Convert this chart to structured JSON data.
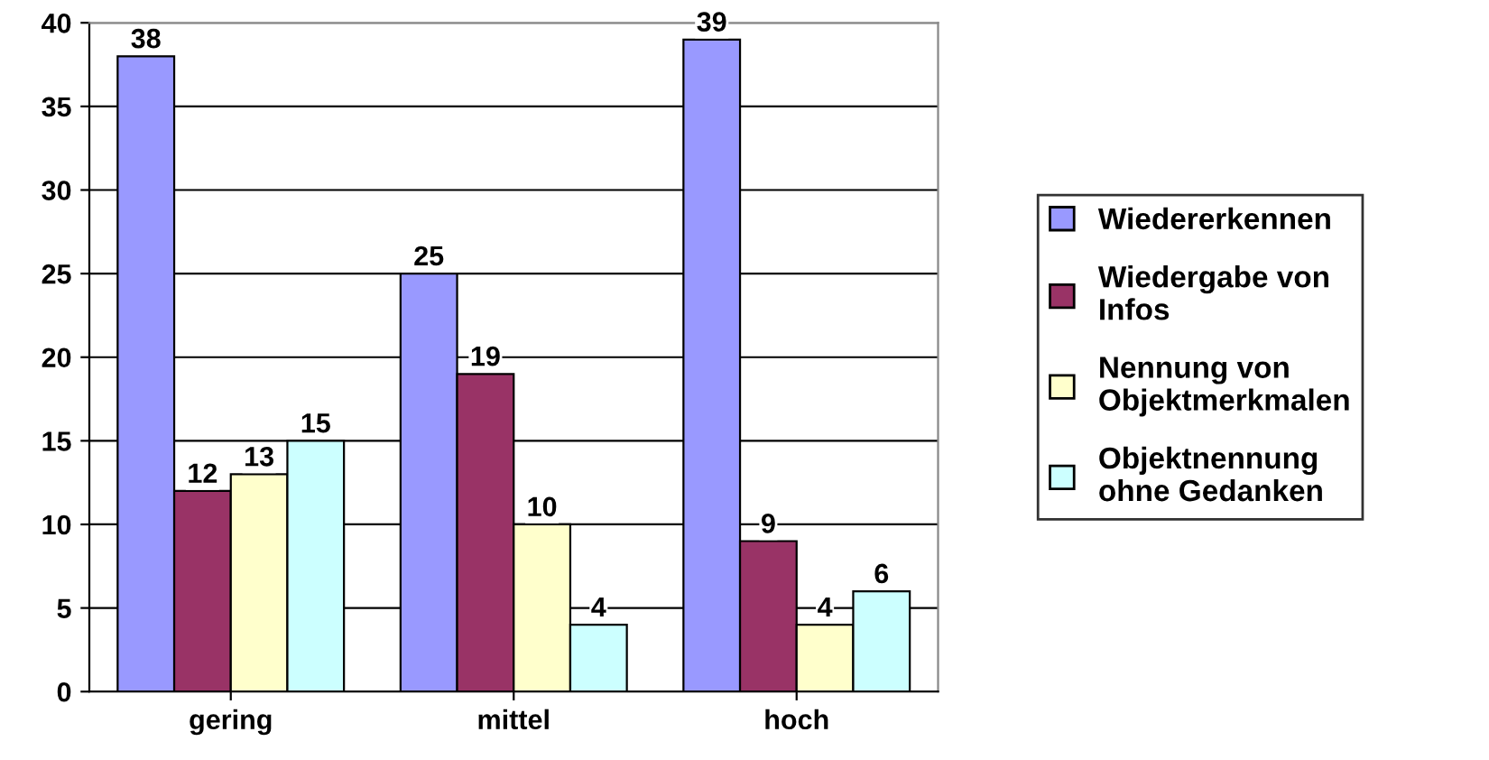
{
  "chart_data": {
    "type": "bar",
    "categories": [
      "gering",
      "mittel",
      "hoch"
    ],
    "series": [
      {
        "name": "Wiedererkennen",
        "color": "#9999ff",
        "values": [
          38,
          25,
          39
        ]
      },
      {
        "name": "Wiedergabe von Infos",
        "color": "#993366",
        "values": [
          12,
          19,
          9
        ]
      },
      {
        "name": "Nennung von Objektmerkmalen",
        "color": "#ffffcc",
        "values": [
          13,
          10,
          4
        ]
      },
      {
        "name": "Objektnennung ohne Gedanken",
        "color": "#ccffff",
        "values": [
          15,
          4,
          6
        ]
      }
    ],
    "ylim": [
      0,
      40
    ],
    "yticks": [
      0,
      5,
      10,
      15,
      20,
      25,
      30,
      35,
      40
    ],
    "grid": "y",
    "legend": "right",
    "data_labels": true
  }
}
